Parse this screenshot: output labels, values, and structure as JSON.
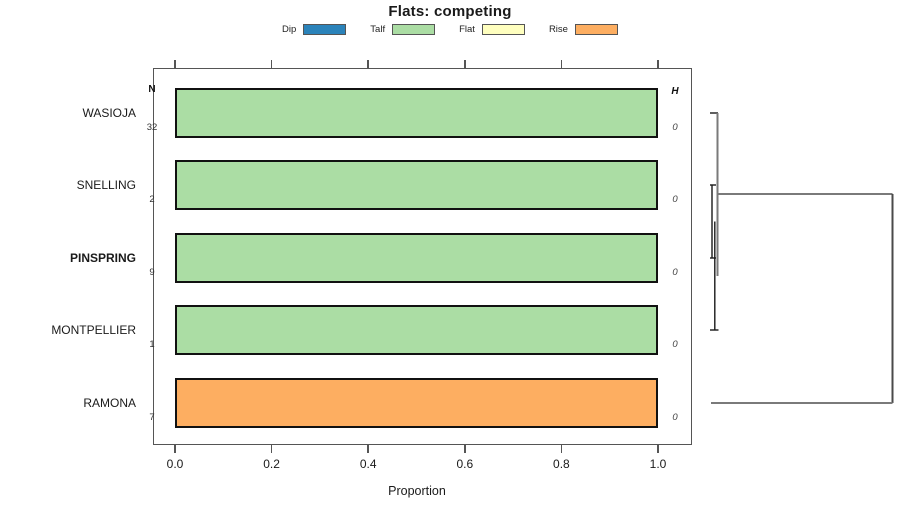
{
  "title": "Flats: competing",
  "chart_data": {
    "type": "bar",
    "orientation": "horizontal",
    "subtype": "proportion-bars-with-dendrogram",
    "title": "Flats: competing",
    "xlabel": "Proportion",
    "xlim": [
      0,
      1
    ],
    "x_ticks": [
      0.0,
      0.2,
      0.4,
      0.6,
      0.8,
      1.0
    ],
    "grid": false,
    "legend_position": "top",
    "legend": [
      {
        "label": "Dip",
        "color": "#2B83BA"
      },
      {
        "label": "Talf",
        "color": "#ABDDA4"
      },
      {
        "label": "Flat",
        "color": "#FFFFBF"
      },
      {
        "label": "Rise",
        "color": "#FDAE61"
      }
    ],
    "left_col_header": "N",
    "right_col_header": "H",
    "categories": [
      "WASIOJA",
      "SNELLING",
      "PINSPRING",
      "MONTPELLIER",
      "RAMONA"
    ],
    "rows": [
      {
        "label": "WASIOJA",
        "bold": false,
        "n": "32",
        "h": "0",
        "segments": [
          {
            "name": "Talf",
            "value": 1.0,
            "color": "#ABDDA4"
          }
        ]
      },
      {
        "label": "SNELLING",
        "bold": false,
        "n": "2",
        "h": "0",
        "segments": [
          {
            "name": "Talf",
            "value": 1.0,
            "color": "#ABDDA4"
          }
        ]
      },
      {
        "label": "PINSPRING",
        "bold": true,
        "n": "9",
        "h": "0",
        "segments": [
          {
            "name": "Talf",
            "value": 1.0,
            "color": "#ABDDA4"
          }
        ]
      },
      {
        "label": "MONTPELLIER",
        "bold": false,
        "n": "1",
        "h": "0",
        "segments": [
          {
            "name": "Talf",
            "value": 1.0,
            "color": "#ABDDA4"
          }
        ]
      },
      {
        "label": "RAMONA",
        "bold": false,
        "n": "7",
        "h": "0",
        "segments": [
          {
            "name": "Rise",
            "value": 1.0,
            "color": "#FDAE61"
          }
        ]
      }
    ],
    "dendrogram": {
      "side": "right",
      "description": "Cluster tree: SNELLING+PINSPRING, then +MONTPELLIER, then +WASIOJA all merge at height ~0; RAMONA joins at a large height",
      "low_merge_height": 0
    }
  }
}
